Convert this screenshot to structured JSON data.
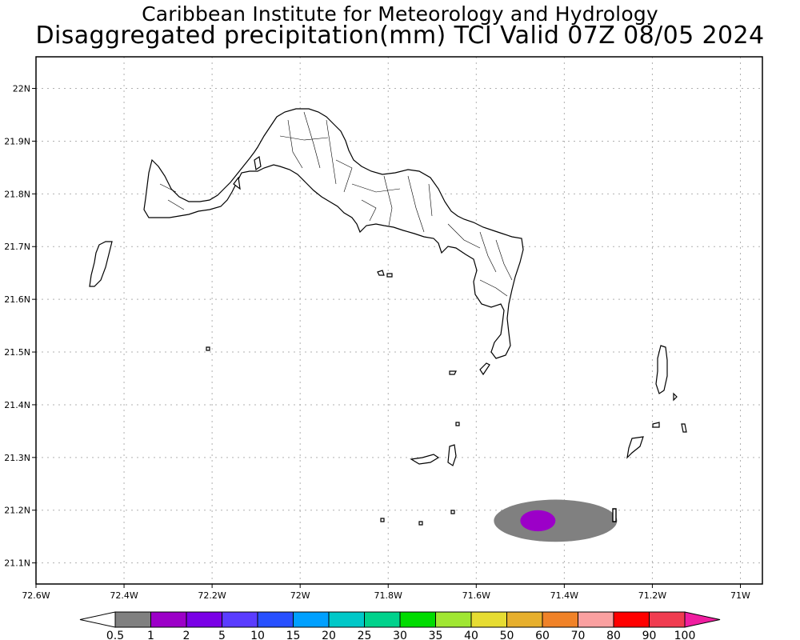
{
  "header": {
    "line1": "Caribbean Institute for Meteorology and Hydrology",
    "line2": "Disaggregated precipitation(mm) TCI Valid 07Z 08/05 2024"
  },
  "map": {
    "lon_range": [
      -72.6,
      -70.95
    ],
    "lat_range": [
      21.06,
      22.06
    ],
    "lon_ticks": [
      {
        "value": -72.6,
        "label": "72.6W"
      },
      {
        "value": -72.4,
        "label": "72.4W"
      },
      {
        "value": -72.2,
        "label": "72.2W"
      },
      {
        "value": -72.0,
        "label": "72W"
      },
      {
        "value": -71.8,
        "label": "71.8W"
      },
      {
        "value": -71.6,
        "label": "71.6W"
      },
      {
        "value": -71.4,
        "label": "71.4W"
      },
      {
        "value": -71.2,
        "label": "71.2W"
      },
      {
        "value": -71.0,
        "label": "71W"
      }
    ],
    "lat_ticks": [
      {
        "value": 22.0,
        "label": "22N"
      },
      {
        "value": 21.9,
        "label": "21.9N"
      },
      {
        "value": 21.8,
        "label": "21.8N"
      },
      {
        "value": 21.7,
        "label": "21.7N"
      },
      {
        "value": 21.6,
        "label": "21.6N"
      },
      {
        "value": 21.5,
        "label": "21.5N"
      },
      {
        "value": 21.4,
        "label": "21.4N"
      },
      {
        "value": 21.3,
        "label": "21.3N"
      },
      {
        "value": 21.2,
        "label": "21.2N"
      },
      {
        "value": 21.1,
        "label": "21.1N"
      }
    ],
    "grid": true,
    "precip_features": [
      {
        "label": "0.5-1 mm",
        "color": "#808080",
        "center_lon": -71.42,
        "center_lat": 21.18,
        "span_lon": 0.28,
        "span_lat": 0.08
      },
      {
        "label": "1-2 mm",
        "color": "#9c00c8",
        "center_lon": -71.46,
        "center_lat": 21.18,
        "span_lon": 0.08,
        "span_lat": 0.04
      }
    ]
  },
  "colorbar": {
    "labels": [
      "0.5",
      "1",
      "2",
      "5",
      "10",
      "15",
      "20",
      "25",
      "30",
      "35",
      "40",
      "50",
      "60",
      "70",
      "80",
      "90",
      "100"
    ],
    "colors": [
      "#808080",
      "#9c00c8",
      "#7a00e6",
      "#5a3cff",
      "#2850ff",
      "#00a0ff",
      "#00c8c8",
      "#00d28c",
      "#00dc00",
      "#a0e632",
      "#e6dc32",
      "#e6af2d",
      "#f08228",
      "#faa0a0",
      "#ff0000",
      "#f03c50"
    ],
    "under_color": "#ffffff",
    "over_color": "#f01ea0"
  }
}
